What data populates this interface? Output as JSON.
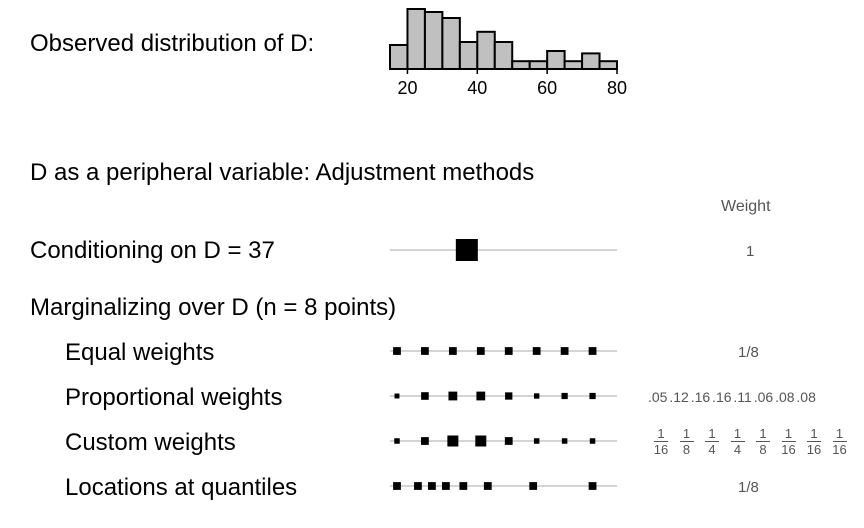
{
  "labels": {
    "observed": "Observed distribution of D:",
    "peripheral": "D as a peripheral variable: Adjustment methods",
    "weight_header": "Weight",
    "conditioning": "Conditioning on D = 37",
    "marginalizing": "Marginalizing over D (n = 8 points)",
    "equal": "Equal weights",
    "proportional": "Proportional weights",
    "custom": "Custom weights",
    "quantiles": "Locations at quantiles"
  },
  "weights": {
    "conditioning": "1",
    "equal": "1/8",
    "proportional": ".05 .12 .16 .16 .11 .06 .08 .08",
    "custom": [
      {
        "num": "1",
        "den": "16"
      },
      {
        "num": "1",
        "den": "8"
      },
      {
        "num": "1",
        "den": "4"
      },
      {
        "num": "1",
        "den": "4"
      },
      {
        "num": "1",
        "den": "8"
      },
      {
        "num": "1",
        "den": "16"
      },
      {
        "num": "1",
        "den": "16"
      },
      {
        "num": "1",
        "den": "16"
      }
    ],
    "quantiles": "1/8"
  },
  "chart_data": {
    "type": "histogram",
    "title": "",
    "xlabel": "",
    "ylabel": "",
    "xlim": [
      15,
      80
    ],
    "xticks": [
      20,
      40,
      60,
      80
    ],
    "bin_edges": [
      15,
      20,
      25,
      30,
      35,
      40,
      45,
      50,
      55,
      60,
      65,
      70,
      75,
      80
    ],
    "counts": [
      4,
      10,
      9.5,
      8.5,
      4.5,
      6.2,
      4.5,
      1.3,
      1.3,
      3,
      1.3,
      2.6,
      1.3
    ],
    "colors": {
      "bar_fill": "#c0c0c0",
      "marker": "#000000",
      "line": "#bbbbbb"
    },
    "adjustment_rows": [
      {
        "name": "conditioning",
        "points": [
          37
        ],
        "sizes": [
          1
        ]
      },
      {
        "name": "equal",
        "points": [
          17,
          25,
          33,
          41,
          49,
          57,
          65,
          73
        ],
        "sizes": [
          0.125,
          0.125,
          0.125,
          0.125,
          0.125,
          0.125,
          0.125,
          0.125
        ]
      },
      {
        "name": "proportional",
        "points": [
          17,
          25,
          33,
          41,
          49,
          57,
          65,
          73
        ],
        "sizes": [
          0.05,
          0.12,
          0.16,
          0.16,
          0.11,
          0.06,
          0.08,
          0.08
        ]
      },
      {
        "name": "custom",
        "points": [
          17,
          25,
          33,
          41,
          49,
          57,
          65,
          73
        ],
        "sizes": [
          0.0625,
          0.125,
          0.25,
          0.25,
          0.125,
          0.0625,
          0.0625,
          0.0625
        ]
      },
      {
        "name": "quantiles",
        "points": [
          17,
          23,
          27,
          31,
          36,
          43,
          56,
          73
        ],
        "sizes": [
          0.125,
          0.125,
          0.125,
          0.125,
          0.125,
          0.125,
          0.125,
          0.125
        ]
      }
    ]
  }
}
